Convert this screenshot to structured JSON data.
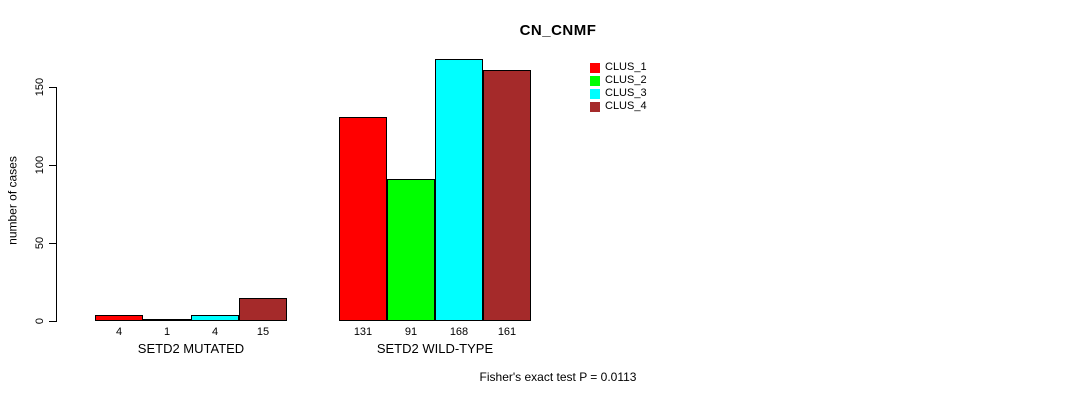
{
  "page": {
    "background": "#ffffff",
    "text_color": "#000000"
  },
  "chart_data": {
    "type": "bar",
    "title": "CN_CNMF",
    "ylabel": "number of cases",
    "xlabel": "",
    "ylim": [
      0,
      175
    ],
    "yticks": [
      0,
      50,
      100,
      150
    ],
    "grid": false,
    "legend_position": "top-right",
    "axis_color": "#000000",
    "bar_border_color": "#000000",
    "categories": [
      "SETD2 MUTATED",
      "SETD2 WILD-TYPE"
    ],
    "series": [
      {
        "name": "CLUS_1",
        "color": "#ff0000",
        "values": [
          4,
          131
        ]
      },
      {
        "name": "CLUS_2",
        "color": "#00ff00",
        "values": [
          1,
          91
        ]
      },
      {
        "name": "CLUS_3",
        "color": "#00ffff",
        "values": [
          4,
          168
        ]
      },
      {
        "name": "CLUS_4",
        "color": "#a52a2a",
        "values": [
          15,
          161
        ]
      }
    ],
    "bar_value_labels_shown": true,
    "annotation": "Fisher's exact test P = 0.0113"
  }
}
